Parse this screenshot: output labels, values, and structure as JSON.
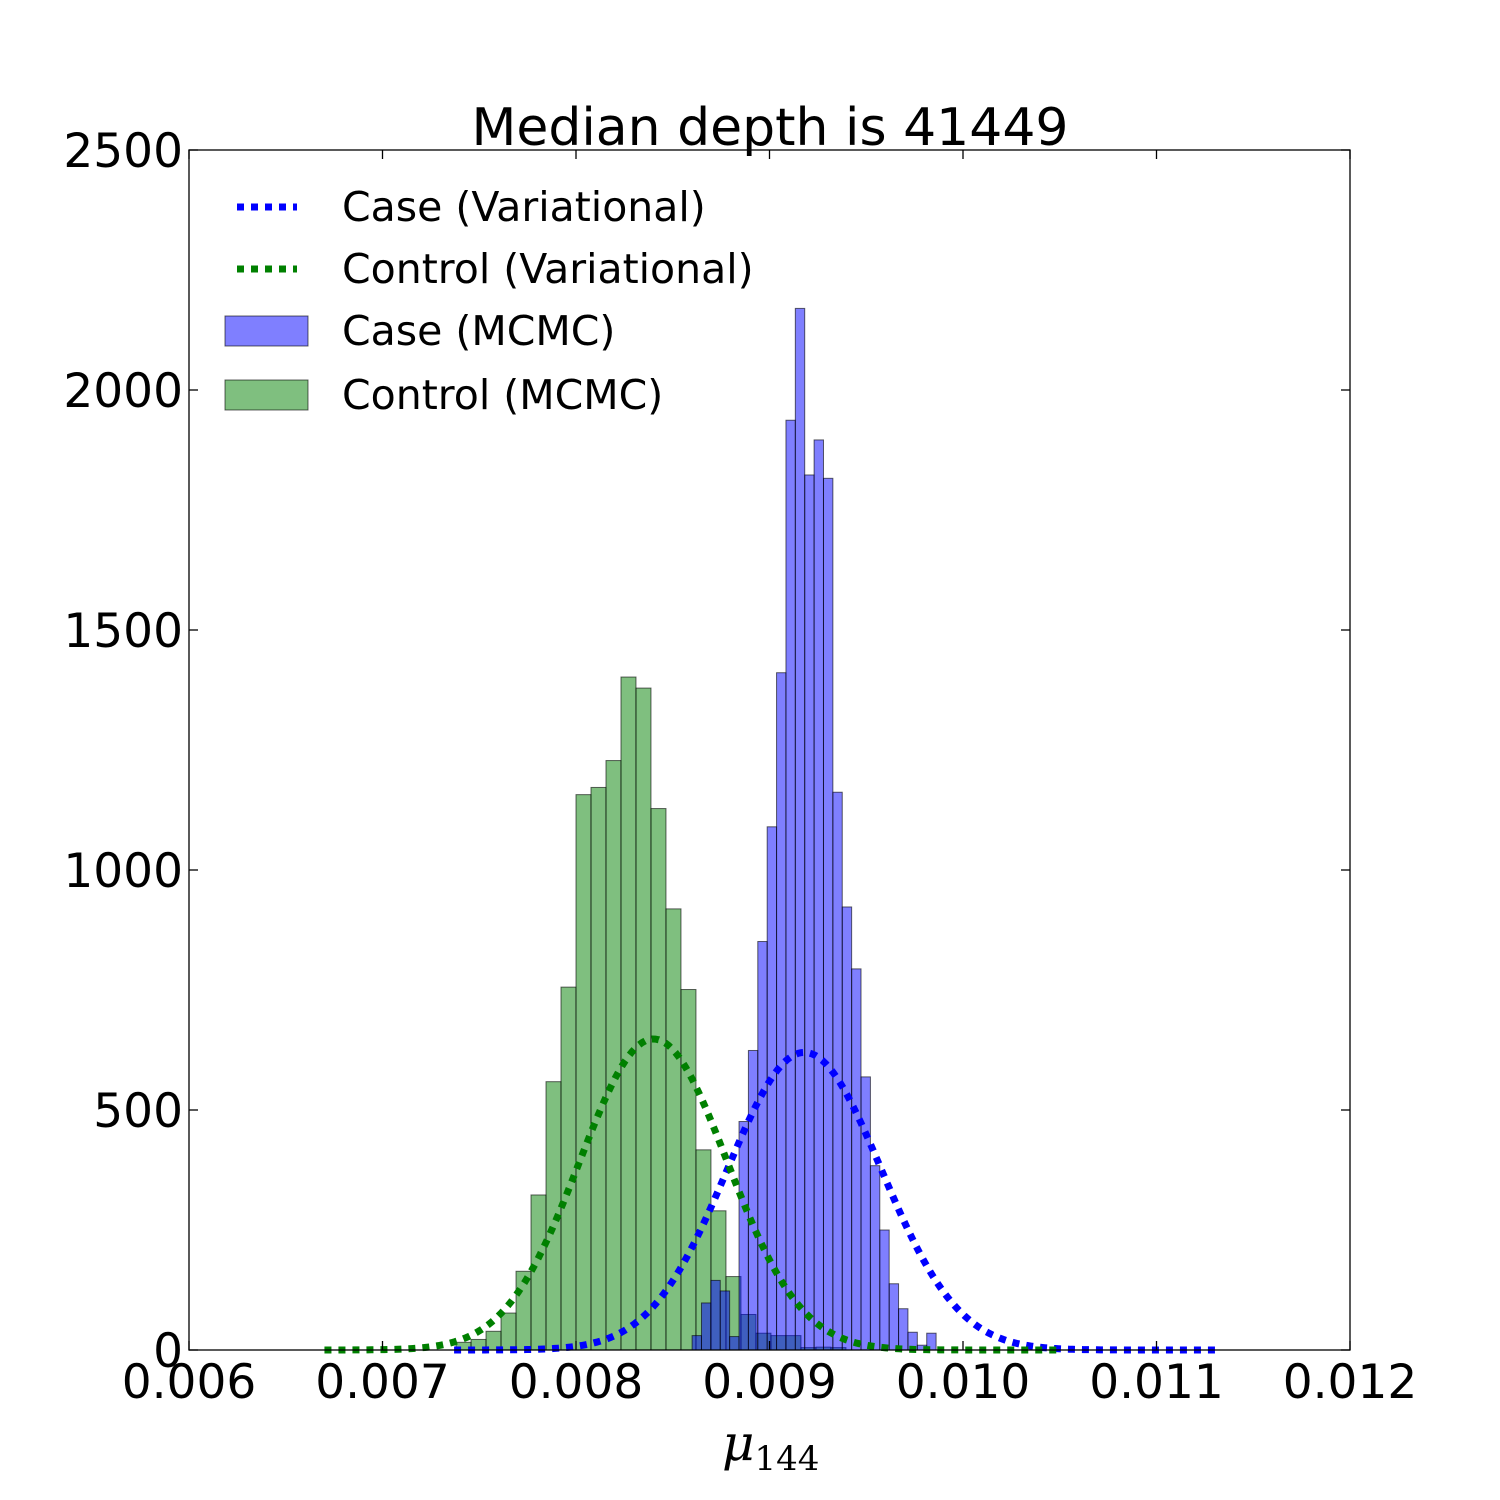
{
  "chart_data": {
    "type": "bar",
    "title": "Median depth is 41449",
    "xlabel": "μ",
    "xlabel_subscript": "144",
    "ylabel": "",
    "xlim": [
      0.006,
      0.012
    ],
    "ylim": [
      0,
      2500
    ],
    "grid": false,
    "legend_position": "top-left",
    "x_ticks": [
      "0.006",
      "0.007",
      "0.008",
      "0.009",
      "0.010",
      "0.011",
      "0.012"
    ],
    "y_ticks": [
      "0",
      "500",
      "1000",
      "1500",
      "2000",
      "2500"
    ],
    "colors": {
      "case_line": "#0000ff",
      "control_line": "#008000",
      "case_bar": "#0000ff",
      "control_bar": "#008000"
    },
    "legend": [
      {
        "label": "Case (Variational)",
        "kind": "line",
        "color": "#0000ff"
      },
      {
        "label": "Control (Variational)",
        "kind": "line",
        "color": "#008000"
      },
      {
        "label": "Case (MCMC)",
        "kind": "bar",
        "color": "#0000ff"
      },
      {
        "label": "Control (MCMC)",
        "kind": "bar",
        "color": "#008000"
      }
    ],
    "histograms": [
      {
        "name": "Control (MCMC)",
        "color": "#008000",
        "bin_start": 0.00738,
        "bin_width": 7.75e-05,
        "counts": [
          16,
          22,
          39,
          77,
          164,
          323,
          559,
          756,
          1157,
          1172,
          1228,
          1402,
          1379,
          1128,
          919,
          751,
          417,
          290,
          153,
          74,
          35,
          30,
          30,
          5,
          6,
          5
        ]
      },
      {
        "name": "Case (MCMC)",
        "color": "#0000ff",
        "bin_start": 0.0086,
        "bin_width": 4.85e-05,
        "counts": [
          30,
          98,
          145,
          123,
          28,
          476,
          624,
          851,
          1090,
          1411,
          1937,
          2170,
          1823,
          1896,
          1816,
          1162,
          923,
          794,
          569,
          384,
          250,
          138,
          86,
          37,
          10,
          35
        ]
      }
    ],
    "series": [
      {
        "name": "Case (Variational)",
        "color": "#0000ff",
        "mean": 0.00918,
        "sd": 0.000398,
        "peak": 620,
        "x_range": [
          0.00737,
          0.01132
        ]
      },
      {
        "name": "Control (Variational)",
        "color": "#008000",
        "mean": 0.0084,
        "sd": 0.000381,
        "peak": 648,
        "x_range": [
          0.0067,
          0.0105
        ]
      }
    ]
  }
}
